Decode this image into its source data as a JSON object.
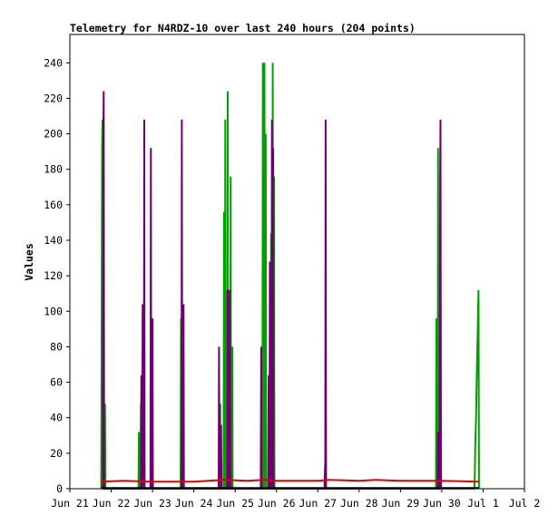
{
  "chart_data": {
    "type": "line",
    "title": "Telemetry for N4RDZ-10 over last 240 hours (204 points)",
    "xlabel": "",
    "ylabel": "Values",
    "x_ticks": [
      "Jun 21",
      "Jun 22",
      "Jun 23",
      "Jun 24",
      "Jun 25",
      "Jun 26",
      "Jun 27",
      "Jun 28",
      "Jun 29",
      "Jun 30",
      "Jul 1",
      "Jul 2"
    ],
    "y_ticks": [
      0,
      20,
      40,
      60,
      80,
      100,
      120,
      140,
      160,
      180,
      200,
      220,
      240
    ],
    "xlim": [
      0,
      11
    ],
    "ylim": [
      0,
      256
    ],
    "grid": false,
    "legend": "none",
    "series": [
      {
        "color": "#00a000",
        "points": [
          [
            0.76,
            0
          ],
          [
            0.78,
            192
          ],
          [
            0.79,
            208
          ],
          [
            0.8,
            0
          ],
          [
            0.84,
            0
          ],
          [
            0.85,
            48
          ],
          [
            0.86,
            0
          ],
          [
            1.66,
            0
          ],
          [
            1.67,
            32
          ],
          [
            1.68,
            0
          ],
          [
            1.71,
            0
          ],
          [
            1.72,
            48
          ],
          [
            1.73,
            0
          ],
          [
            1.77,
            0
          ],
          [
            1.78,
            104
          ],
          [
            1.79,
            0
          ],
          [
            2.68,
            0
          ],
          [
            2.69,
            96
          ],
          [
            2.7,
            0
          ],
          [
            2.72,
            0
          ],
          [
            2.73,
            64
          ],
          [
            2.74,
            0
          ],
          [
            3.63,
            0
          ],
          [
            3.64,
            48
          ],
          [
            3.65,
            0
          ],
          [
            3.72,
            0
          ],
          [
            3.73,
            156
          ],
          [
            3.74,
            0
          ],
          [
            3.75,
            0
          ],
          [
            3.76,
            208
          ],
          [
            3.77,
            0
          ],
          [
            3.78,
            0
          ],
          [
            3.79,
            112
          ],
          [
            3.8,
            0
          ],
          [
            3.81,
            0
          ],
          [
            3.82,
            224
          ],
          [
            3.83,
            0
          ],
          [
            3.84,
            0
          ],
          [
            3.85,
            112
          ],
          [
            3.86,
            0
          ],
          [
            3.88,
            0
          ],
          [
            3.89,
            176
          ],
          [
            3.9,
            0
          ],
          [
            3.92,
            0
          ],
          [
            3.93,
            80
          ],
          [
            3.94,
            0
          ],
          [
            4.66,
            0
          ],
          [
            4.67,
            240
          ],
          [
            4.68,
            0
          ],
          [
            4.7,
            0
          ],
          [
            4.71,
            240
          ],
          [
            4.72,
            0
          ],
          [
            4.73,
            0
          ],
          [
            4.74,
            200
          ],
          [
            4.75,
            0
          ],
          [
            4.86,
            0
          ],
          [
            4.87,
            144
          ],
          [
            4.88,
            0
          ],
          [
            4.9,
            0
          ],
          [
            4.91,
            240
          ],
          [
            4.92,
            0
          ],
          [
            4.93,
            0
          ],
          [
            4.94,
            176
          ],
          [
            4.95,
            0
          ],
          [
            8.86,
            0
          ],
          [
            8.87,
            96
          ],
          [
            8.88,
            0
          ],
          [
            8.9,
            0
          ],
          [
            8.91,
            192
          ],
          [
            8.92,
            0
          ],
          [
            8.93,
            0
          ],
          [
            8.94,
            80
          ],
          [
            8.95,
            0
          ],
          [
            9.79,
            0
          ],
          [
            9.8,
            8
          ],
          [
            9.81,
            24
          ],
          [
            9.83,
            40
          ],
          [
            9.84,
            56
          ],
          [
            9.86,
            80
          ],
          [
            9.87,
            88
          ],
          [
            9.88,
            104
          ],
          [
            9.89,
            112
          ],
          [
            9.9,
            0
          ]
        ]
      },
      {
        "color": "#700070",
        "points": [
          [
            0.8,
            0
          ],
          [
            0.81,
            200
          ],
          [
            0.82,
            224
          ],
          [
            0.83,
            0
          ],
          [
            1.72,
            0
          ],
          [
            1.73,
            64
          ],
          [
            1.74,
            0
          ],
          [
            1.75,
            0
          ],
          [
            1.76,
            104
          ],
          [
            1.77,
            0
          ],
          [
            1.79,
            0
          ],
          [
            1.8,
            208
          ],
          [
            1.81,
            0
          ],
          [
            1.95,
            0
          ],
          [
            1.96,
            192
          ],
          [
            1.97,
            0
          ],
          [
            1.99,
            0
          ],
          [
            2.0,
            96
          ],
          [
            2.01,
            0
          ],
          [
            2.7,
            0
          ],
          [
            2.71,
            208
          ],
          [
            2.72,
            0
          ],
          [
            2.74,
            0
          ],
          [
            2.75,
            104
          ],
          [
            2.76,
            0
          ],
          [
            3.6,
            0
          ],
          [
            3.61,
            80
          ],
          [
            3.62,
            0
          ],
          [
            3.65,
            0
          ],
          [
            3.66,
            36
          ],
          [
            3.67,
            0
          ],
          [
            3.8,
            0
          ],
          [
            3.81,
            8
          ],
          [
            3.82,
            112
          ],
          [
            3.83,
            0
          ],
          [
            3.86,
            0
          ],
          [
            3.87,
            112
          ],
          [
            3.88,
            56
          ],
          [
            3.89,
            0
          ],
          [
            4.62,
            0
          ],
          [
            4.63,
            80
          ],
          [
            4.64,
            0
          ],
          [
            4.8,
            0
          ],
          [
            4.81,
            64
          ],
          [
            4.82,
            0
          ],
          [
            4.83,
            0
          ],
          [
            4.84,
            128
          ],
          [
            4.85,
            0
          ],
          [
            4.88,
            0
          ],
          [
            4.89,
            208
          ],
          [
            4.9,
            0
          ],
          [
            4.91,
            0
          ],
          [
            4.92,
            192
          ],
          [
            4.93,
            0
          ],
          [
            6.16,
            0
          ],
          [
            6.17,
            8
          ],
          [
            6.18,
            16
          ],
          [
            6.19,
            208
          ],
          [
            6.2,
            0
          ],
          [
            8.9,
            0
          ],
          [
            8.91,
            32
          ],
          [
            8.92,
            0
          ],
          [
            8.95,
            0
          ],
          [
            8.96,
            176
          ],
          [
            8.97,
            208
          ],
          [
            8.98,
            0
          ]
        ]
      },
      {
        "color": "#e00000",
        "points": [
          [
            0.76,
            4
          ],
          [
            1.3,
            4.5
          ],
          [
            2.0,
            4
          ],
          [
            3.0,
            4
          ],
          [
            3.7,
            5
          ],
          [
            4.3,
            4.5
          ],
          [
            4.7,
            5
          ],
          [
            5.0,
            4.5
          ],
          [
            6.0,
            4.5
          ],
          [
            6.25,
            5
          ],
          [
            7.0,
            4.5
          ],
          [
            7.4,
            5
          ],
          [
            8.0,
            4.5
          ],
          [
            8.6,
            4.5
          ],
          [
            9.0,
            4.5
          ],
          [
            9.9,
            4
          ]
        ]
      },
      {
        "color": "#000000",
        "points": [
          [
            0.76,
            0.4
          ],
          [
            9.9,
            0.4
          ]
        ]
      }
    ]
  }
}
